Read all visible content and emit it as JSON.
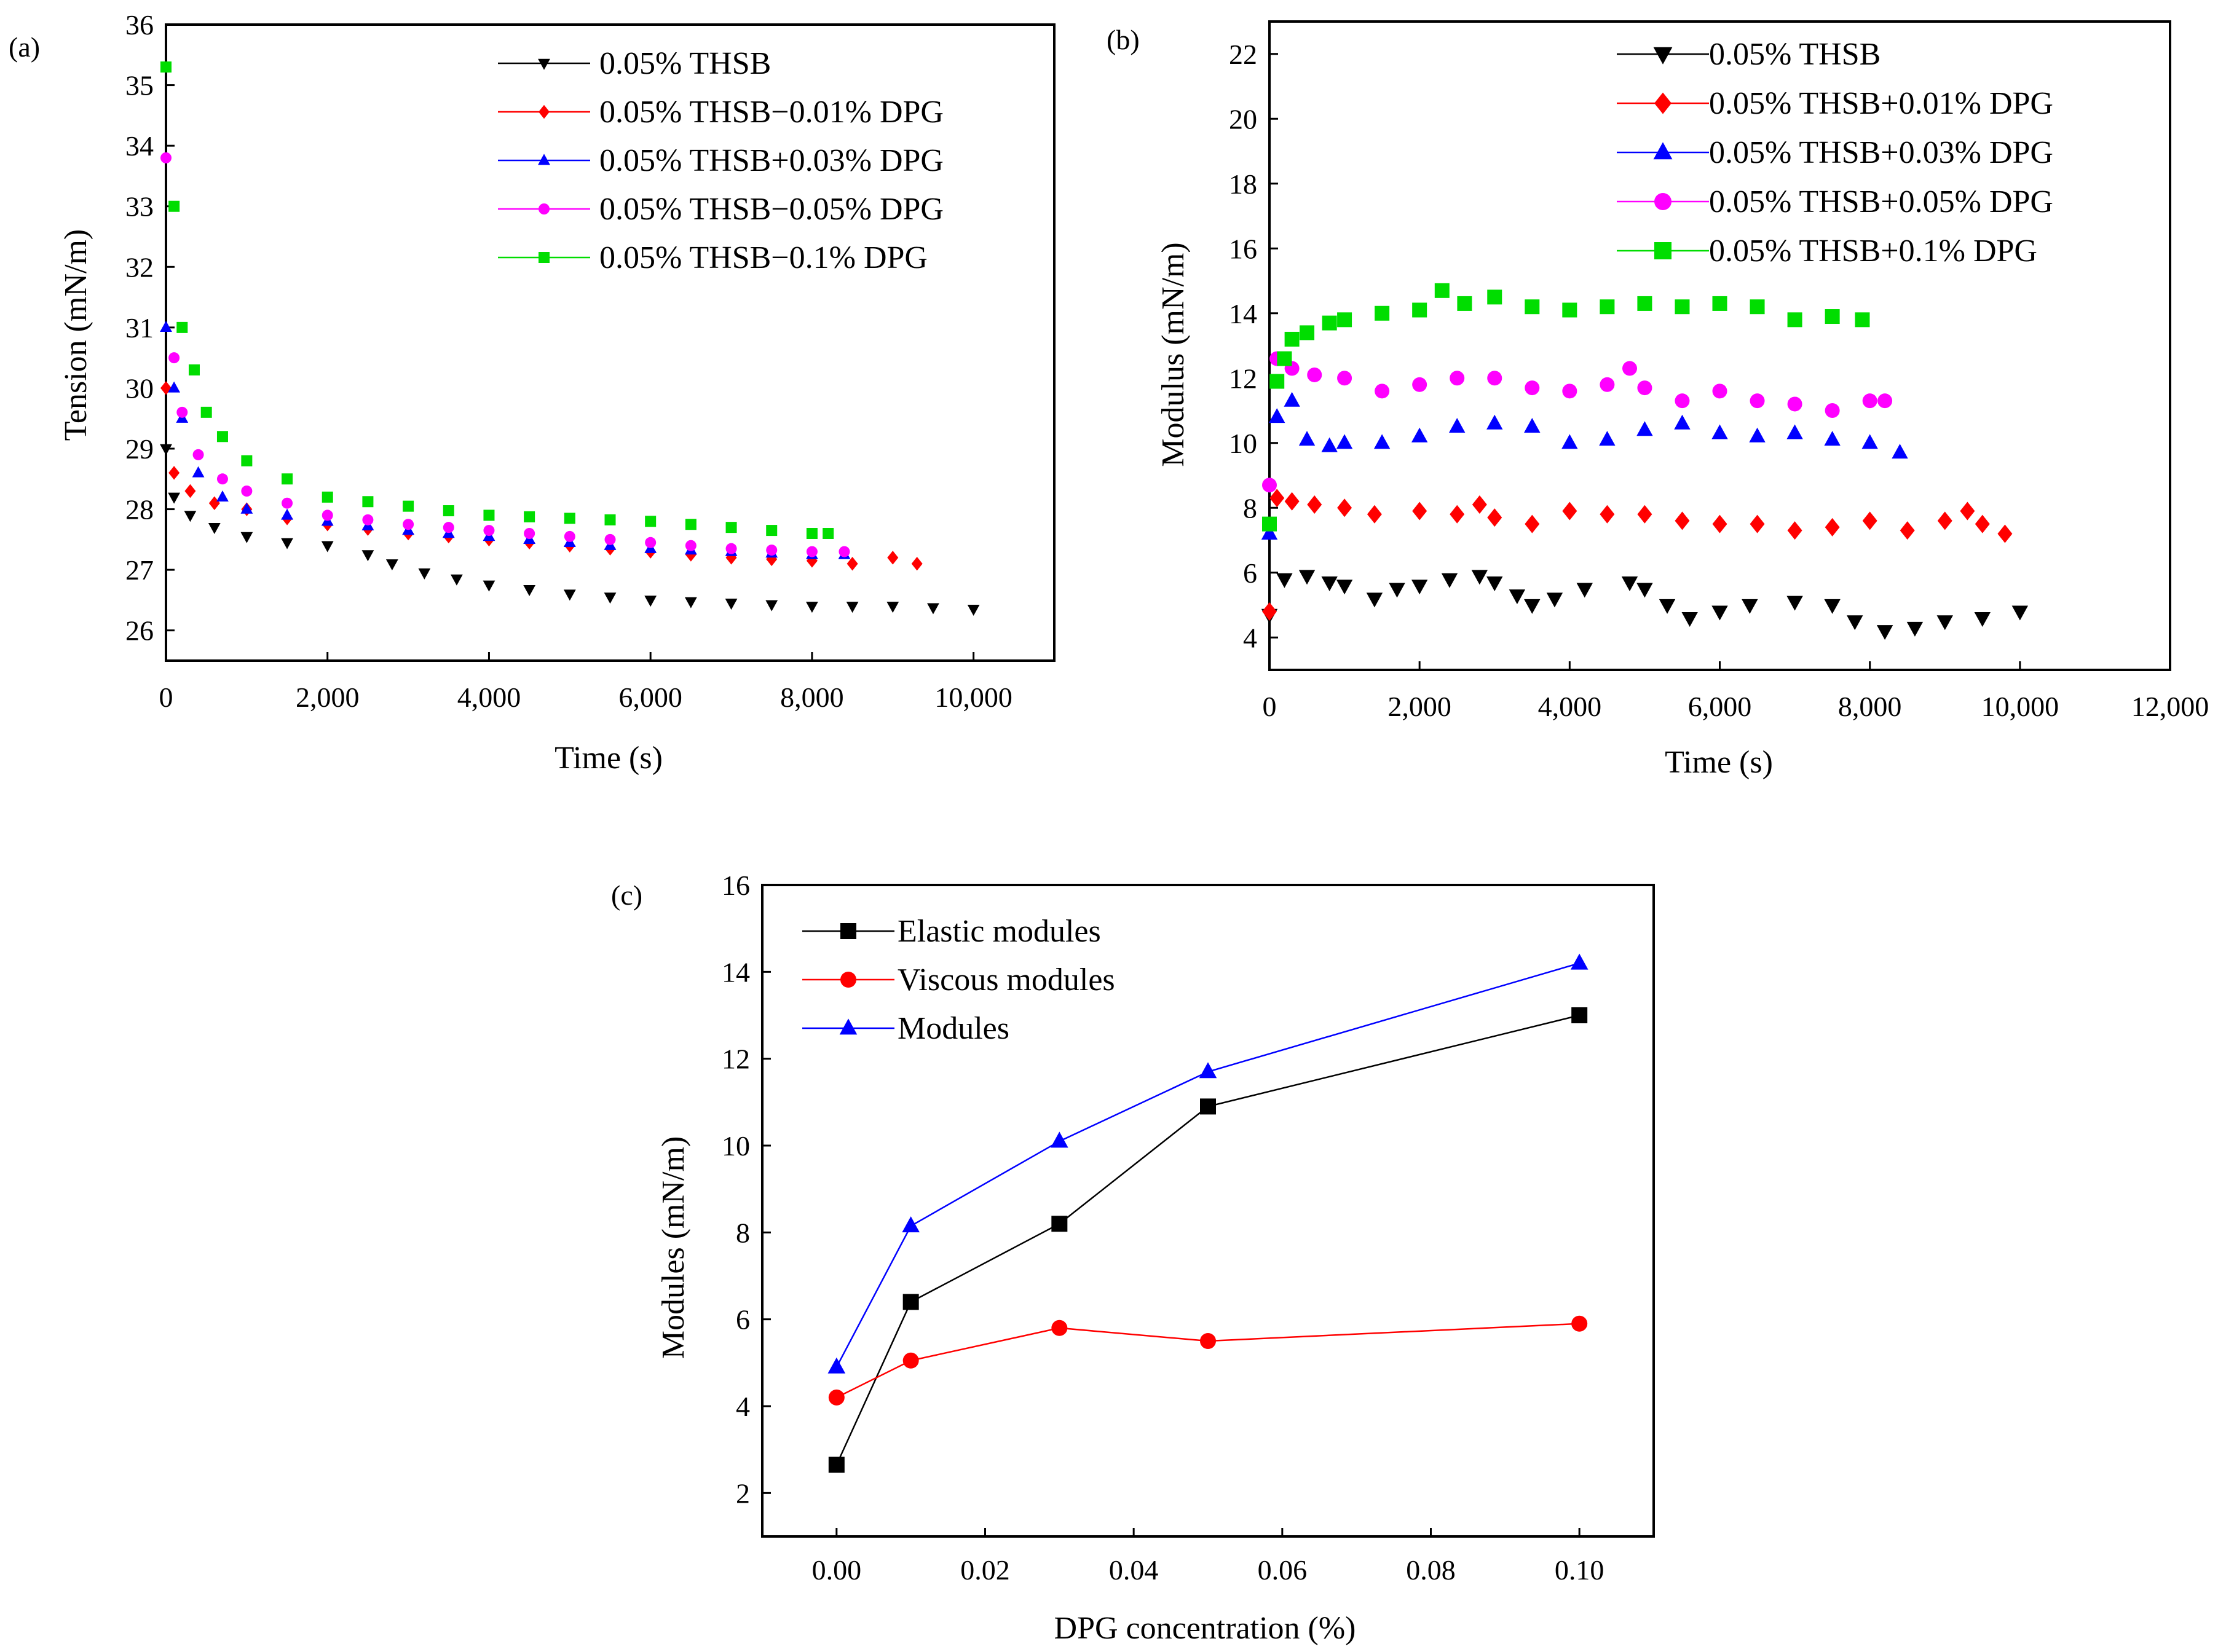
{
  "figure": {
    "colors": {
      "black": "#000000",
      "red": "#ff0000",
      "blue": "#0000ff",
      "magenta": "#ff00ff",
      "green": "#00dd00"
    }
  },
  "chart_data": [
    {
      "panel": "(a)",
      "type": "scatter",
      "xlabel": "Time (s)",
      "ylabel": "Tension (mN/m)",
      "xlim": [
        0,
        11000
      ],
      "ylim": [
        25.5,
        36
      ],
      "xticks": [
        0,
        2000,
        4000,
        6000,
        8000,
        10000
      ],
      "xtick_labels": [
        "0",
        "2,000",
        "4,000",
        "6,000",
        "8,000",
        "10,000"
      ],
      "yticks": [
        26,
        27,
        28,
        29,
        30,
        31,
        32,
        33,
        34,
        35,
        36
      ],
      "ytick_labels": [
        "26",
        "27",
        "28",
        "29",
        "30",
        "31",
        "32",
        "33",
        "34",
        "35",
        "36"
      ],
      "legend_position": "top-right",
      "series": [
        {
          "name": "0.05% THSB",
          "color": "#000000",
          "marker": "triangle-down",
          "x": [
            0,
            100,
            300,
            600,
            1000,
            1500,
            2000,
            2500,
            2800,
            3200,
            3600,
            4000,
            5000,
            6000,
            7000,
            8000,
            9000,
            10000
          ],
          "y": [
            29.0,
            28.2,
            27.9,
            27.7,
            27.55,
            27.45,
            27.4,
            27.25,
            27.1,
            26.95,
            26.85,
            26.75,
            26.6,
            26.5,
            26.45,
            26.4,
            26.4,
            26.35
          ]
        },
        {
          "name": "0.05% THSB−0.01% DPG",
          "color": "#ff0000",
          "marker": "diamond",
          "x": [
            0,
            100,
            300,
            600,
            1000,
            1500,
            2000,
            3000,
            4000,
            5000,
            6000,
            7000,
            8000,
            8500,
            9000,
            9300
          ],
          "y": [
            30.0,
            28.6,
            28.3,
            28.1,
            28.0,
            27.85,
            27.75,
            27.6,
            27.5,
            27.4,
            27.3,
            27.2,
            27.15,
            27.1,
            27.2,
            27.1
          ]
        },
        {
          "name": "0.05% THSB+0.03% DPG",
          "color": "#0000ff",
          "marker": "triangle-up",
          "x": [
            0,
            100,
            200,
            400,
            700,
            1000,
            1500,
            2000,
            3000,
            4000,
            5000,
            6000,
            7000,
            8000,
            8400
          ],
          "y": [
            31.0,
            30.0,
            29.5,
            28.6,
            28.2,
            28.0,
            27.9,
            27.8,
            27.65,
            27.55,
            27.45,
            27.35,
            27.3,
            27.25,
            27.25
          ]
        },
        {
          "name": "0.05% THSB−0.05% DPG",
          "color": "#ff00ff",
          "marker": "circle",
          "x": [
            0,
            100,
            200,
            400,
            700,
            1000,
            1500,
            2000,
            3000,
            4000,
            5000,
            6000,
            7000,
            8000,
            8400
          ],
          "y": [
            33.8,
            30.5,
            29.6,
            28.9,
            28.5,
            28.3,
            28.1,
            27.9,
            27.75,
            27.65,
            27.55,
            27.45,
            27.35,
            27.3,
            27.3
          ]
        },
        {
          "name": "0.05% THSB−0.1% DPG",
          "color": "#00dd00",
          "marker": "square",
          "x": [
            0,
            100,
            200,
            350,
            500,
            700,
            1000,
            1500,
            2000,
            3000,
            4000,
            5000,
            6000,
            7000,
            8000,
            8200
          ],
          "y": [
            35.3,
            33.0,
            31.0,
            30.3,
            29.6,
            29.2,
            28.8,
            28.5,
            28.2,
            28.05,
            27.9,
            27.85,
            27.8,
            27.7,
            27.6,
            27.6
          ]
        }
      ]
    },
    {
      "panel": "(b)",
      "type": "scatter",
      "xlabel": "Time (s)",
      "ylabel": "Modulus (mN/m)",
      "xlim": [
        0,
        12000
      ],
      "ylim": [
        3,
        23
      ],
      "xticks": [
        0,
        2000,
        4000,
        6000,
        8000,
        10000,
        12000
      ],
      "xtick_labels": [
        "0",
        "2,000",
        "4,000",
        "6,000",
        "8,000",
        "10,000",
        "12,000"
      ],
      "yticks": [
        4,
        6,
        8,
        10,
        12,
        14,
        16,
        18,
        20,
        22
      ],
      "ytick_labels": [
        "4",
        "6",
        "8",
        "10",
        "12",
        "14",
        "16",
        "18",
        "20",
        "22"
      ],
      "legend_position": "top-right",
      "series": [
        {
          "name": "0.05% THSB",
          "color": "#000000",
          "marker": "triangle-down",
          "x": [
            0,
            200,
            500,
            800,
            1000,
            1400,
            1700,
            2000,
            2400,
            2800,
            3000,
            3300,
            3500,
            3800,
            4200,
            4800,
            5000,
            5300,
            5600,
            6000,
            6400,
            7000,
            7500,
            7800,
            8200,
            8600,
            9000,
            9500,
            10000
          ],
          "y": [
            4.7,
            5.8,
            5.9,
            5.7,
            5.6,
            5.2,
            5.5,
            5.6,
            5.8,
            5.9,
            5.7,
            5.3,
            5.0,
            5.2,
            5.5,
            5.7,
            5.5,
            5.0,
            4.6,
            4.8,
            5.0,
            5.1,
            5.0,
            4.5,
            4.2,
            4.3,
            4.5,
            4.6,
            4.8
          ]
        },
        {
          "name": "0.05% THSB+0.01% DPG",
          "color": "#ff0000",
          "marker": "diamond",
          "x": [
            0,
            100,
            300,
            600,
            1000,
            1400,
            2000,
            2500,
            2800,
            3000,
            3500,
            4000,
            4500,
            5000,
            5500,
            6000,
            6500,
            7000,
            7500,
            8000,
            8500,
            9000,
            9300,
            9500,
            9800
          ],
          "y": [
            4.8,
            8.3,
            8.2,
            8.1,
            8.0,
            7.8,
            7.9,
            7.8,
            8.1,
            7.7,
            7.5,
            7.9,
            7.8,
            7.8,
            7.6,
            7.5,
            7.5,
            7.3,
            7.4,
            7.6,
            7.3,
            7.6,
            7.9,
            7.5,
            7.2
          ]
        },
        {
          "name": "0.05% THSB+0.03% DPG",
          "color": "#0000ff",
          "marker": "triangle-up",
          "x": [
            0,
            100,
            300,
            500,
            800,
            1000,
            1500,
            2000,
            2500,
            3000,
            3500,
            4000,
            4500,
            5000,
            5500,
            6000,
            6500,
            7000,
            7500,
            8000,
            8400
          ],
          "y": [
            7.2,
            10.8,
            11.3,
            10.1,
            9.9,
            10.0,
            10.0,
            10.2,
            10.5,
            10.6,
            10.5,
            10.0,
            10.1,
            10.4,
            10.6,
            10.3,
            10.2,
            10.3,
            10.1,
            10.0,
            9.7
          ]
        },
        {
          "name": "0.05% THSB+0.05% DPG",
          "color": "#ff00ff",
          "marker": "circle",
          "x": [
            0,
            100,
            300,
            600,
            1000,
            1500,
            2000,
            2500,
            3000,
            3500,
            4000,
            4500,
            4800,
            5000,
            5500,
            6000,
            6500,
            7000,
            7500,
            8000,
            8200
          ],
          "y": [
            8.7,
            12.6,
            12.3,
            12.1,
            12.0,
            11.6,
            11.8,
            12.0,
            12.0,
            11.7,
            11.6,
            11.8,
            12.3,
            11.7,
            11.3,
            11.6,
            11.3,
            11.2,
            11.0,
            11.3,
            11.3
          ]
        },
        {
          "name": "0.05% THSB+0.1% DPG",
          "color": "#00dd00",
          "marker": "square",
          "x": [
            0,
            100,
            200,
            300,
            500,
            800,
            1000,
            1500,
            2000,
            2300,
            2600,
            3000,
            3500,
            4000,
            4500,
            5000,
            5500,
            6000,
            6500,
            7000,
            7500,
            7900
          ],
          "y": [
            7.5,
            11.9,
            12.6,
            13.2,
            13.4,
            13.7,
            13.8,
            14.0,
            14.1,
            14.7,
            14.3,
            14.5,
            14.2,
            14.1,
            14.2,
            14.3,
            14.2,
            14.3,
            14.2,
            13.8,
            13.9,
            13.8
          ]
        }
      ]
    },
    {
      "panel": "(c)",
      "type": "line",
      "xlabel": "DPG concentration (%)",
      "ylabel": "Modules (mN/m)",
      "xlim": [
        -0.01,
        0.11
      ],
      "ylim": [
        1,
        16
      ],
      "xticks": [
        0,
        0.02,
        0.04,
        0.06,
        0.08,
        0.1
      ],
      "xtick_labels": [
        "0.00",
        "0.02",
        "0.04",
        "0.06",
        "0.08",
        "0.10"
      ],
      "yticks": [
        2,
        4,
        6,
        8,
        10,
        12,
        14,
        16
      ],
      "ytick_labels": [
        "2",
        "4",
        "6",
        "8",
        "10",
        "12",
        "14",
        "16"
      ],
      "legend_position": "top-left",
      "series": [
        {
          "name": "Elastic modules",
          "color": "#000000",
          "marker": "square",
          "x": [
            0,
            0.01,
            0.03,
            0.05,
            0.1
          ],
          "y": [
            2.65,
            6.4,
            8.2,
            10.9,
            13.0
          ]
        },
        {
          "name": "Viscous modules",
          "color": "#ff0000",
          "marker": "circle",
          "x": [
            0,
            0.01,
            0.03,
            0.05,
            0.1
          ],
          "y": [
            4.2,
            5.05,
            5.8,
            5.5,
            5.9
          ]
        },
        {
          "name": "Modules",
          "color": "#0000ff",
          "marker": "triangle-up",
          "x": [
            0,
            0.01,
            0.03,
            0.05,
            0.1
          ],
          "y": [
            4.9,
            8.15,
            10.1,
            11.7,
            14.2
          ]
        }
      ]
    }
  ]
}
